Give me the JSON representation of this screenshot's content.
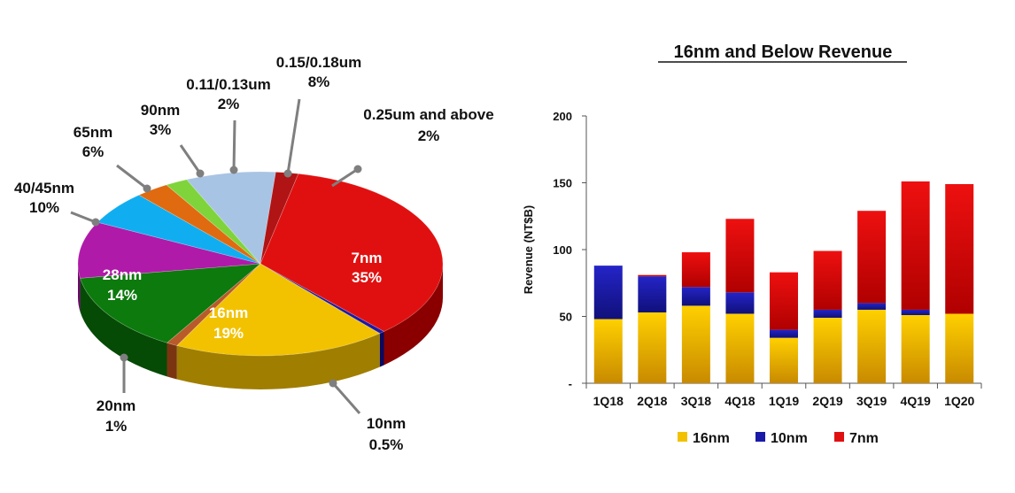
{
  "chart_data": [
    {
      "type": "pie",
      "title": "",
      "slices": [
        {
          "name": "7nm",
          "value": "35%",
          "pct": 35,
          "color": "#e11010",
          "side": "#8a0000"
        },
        {
          "name": "10nm",
          "value": "0.5%",
          "pct": 0.5,
          "color": "#1a1aa8",
          "side": "#0a0a60"
        },
        {
          "name": "16nm",
          "value": "19%",
          "pct": 19,
          "color": "#f2c200",
          "side": "#a07e00"
        },
        {
          "name": "20nm",
          "value": "1%",
          "pct": 1,
          "color": "#b85a2a",
          "side": "#7a3510"
        },
        {
          "name": "28nm",
          "value": "14%",
          "pct": 14,
          "color": "#0c7a0c",
          "side": "#054a05"
        },
        {
          "name": "40/45nm",
          "value": "10%",
          "pct": 10,
          "color": "#b01aa8",
          "side": "#6a0a66"
        },
        {
          "name": "65nm",
          "value": "6%",
          "pct": 6,
          "color": "#10aef0",
          "side": "#0a6a92"
        },
        {
          "name": "90nm",
          "value": "3%",
          "pct": 3,
          "color": "#e06a10",
          "side": "#8a3f08"
        },
        {
          "name": "0.11/0.13um",
          "value": "2%",
          "pct": 2,
          "color": "#7ed43a",
          "side": "#4a8a1a"
        },
        {
          "name": "0.15/0.18um",
          "value": "8%",
          "pct": 8,
          "color": "#a8c4e4",
          "side": "#6a86a8"
        },
        {
          "name": "0.25um and above",
          "value": "2%",
          "pct": 2,
          "color": "#b01414",
          "side": "#700808"
        }
      ]
    },
    {
      "type": "bar",
      "stacked": true,
      "title": "16nm and Below Revenue",
      "xlabel": "",
      "ylabel": "Revenue (NT$B)",
      "ylim": [
        0,
        200
      ],
      "yticks": [
        "-",
        "50",
        "100",
        "150",
        "200"
      ],
      "categories": [
        "1Q18",
        "2Q18",
        "3Q18",
        "4Q18",
        "1Q19",
        "2Q19",
        "3Q19",
        "4Q19",
        "1Q20"
      ],
      "series": [
        {
          "name": "16nm",
          "color": "#f2c200",
          "values": [
            48,
            53,
            58,
            52,
            34,
            49,
            55,
            51,
            52
          ]
        },
        {
          "name": "10nm",
          "color": "#1a1aa8",
          "values": [
            40,
            27,
            14,
            16,
            6,
            6,
            5,
            4,
            0
          ]
        },
        {
          "name": "7nm",
          "color": "#e11010",
          "values": [
            0,
            1,
            26,
            55,
            43,
            44,
            69,
            96,
            97
          ]
        }
      ],
      "legend_position": "bottom",
      "grid": false
    }
  ]
}
